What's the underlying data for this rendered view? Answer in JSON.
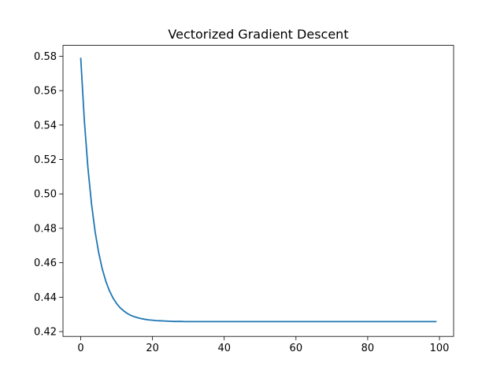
{
  "chart_data": {
    "type": "line",
    "title": "Vectorized Gradient Descent",
    "xlabel": "",
    "ylabel": "",
    "xlim": [
      -4.95,
      103.95
    ],
    "ylim": [
      0.4172,
      0.5863
    ],
    "xticks": [
      0,
      20,
      40,
      60,
      80,
      100
    ],
    "yticks": [
      0.42,
      0.44,
      0.46,
      0.48,
      0.5,
      0.52,
      0.54,
      0.56,
      0.58
    ],
    "grid": false,
    "legend": "none",
    "series": [
      {
        "color": "#1f77b4",
        "x": [
          0,
          1,
          2,
          3,
          4,
          5,
          6,
          7,
          8,
          9,
          10,
          11,
          12,
          13,
          14,
          15,
          16,
          17,
          18,
          19,
          20,
          21,
          22,
          23,
          24,
          25,
          26,
          27,
          28,
          29,
          30,
          31,
          32,
          33,
          34,
          35,
          36,
          37,
          38,
          39,
          40,
          41,
          42,
          43,
          44,
          45,
          46,
          47,
          48,
          49,
          50,
          51,
          52,
          53,
          54,
          55,
          56,
          57,
          58,
          59,
          60,
          61,
          62,
          63,
          64,
          65,
          66,
          67,
          68,
          69,
          70,
          71,
          72,
          73,
          74,
          75,
          76,
          77,
          78,
          79,
          80,
          81,
          82,
          83,
          84,
          85,
          86,
          87,
          88,
          89,
          90,
          91,
          92,
          93,
          94,
          95,
          96,
          97,
          98,
          99
        ],
        "values": [
          0.5787,
          0.5427,
          0.5152,
          0.4942,
          0.4781,
          0.4658,
          0.4564,
          0.4492,
          0.4437,
          0.4395,
          0.4363,
          0.4338,
          0.432,
          0.4305,
          0.4294,
          0.4286,
          0.428,
          0.4275,
          0.4271,
          0.4268,
          0.4266,
          0.4264,
          0.4263,
          0.4262,
          0.4261,
          0.426,
          0.4259,
          0.4259,
          0.4259,
          0.4258,
          0.4258,
          0.4258,
          0.4258,
          0.4258,
          0.4258,
          0.4258,
          0.4258,
          0.4258,
          0.4258,
          0.4258,
          0.4258,
          0.4258,
          0.4258,
          0.4258,
          0.4258,
          0.4258,
          0.4258,
          0.4258,
          0.4258,
          0.4258,
          0.4258,
          0.4258,
          0.4258,
          0.4258,
          0.4258,
          0.4258,
          0.4258,
          0.4258,
          0.4258,
          0.4258,
          0.4258,
          0.4258,
          0.4258,
          0.4258,
          0.4258,
          0.4258,
          0.4258,
          0.4258,
          0.4258,
          0.4258,
          0.4258,
          0.4258,
          0.4258,
          0.4258,
          0.4258,
          0.4258,
          0.4258,
          0.4258,
          0.4258,
          0.4258,
          0.4258,
          0.4258,
          0.4258,
          0.4258,
          0.4258,
          0.4258,
          0.4258,
          0.4258,
          0.4258,
          0.4258,
          0.4258,
          0.4258,
          0.4258,
          0.4258,
          0.4258,
          0.4258,
          0.4258,
          0.4258,
          0.4258,
          0.4258
        ]
      }
    ]
  }
}
